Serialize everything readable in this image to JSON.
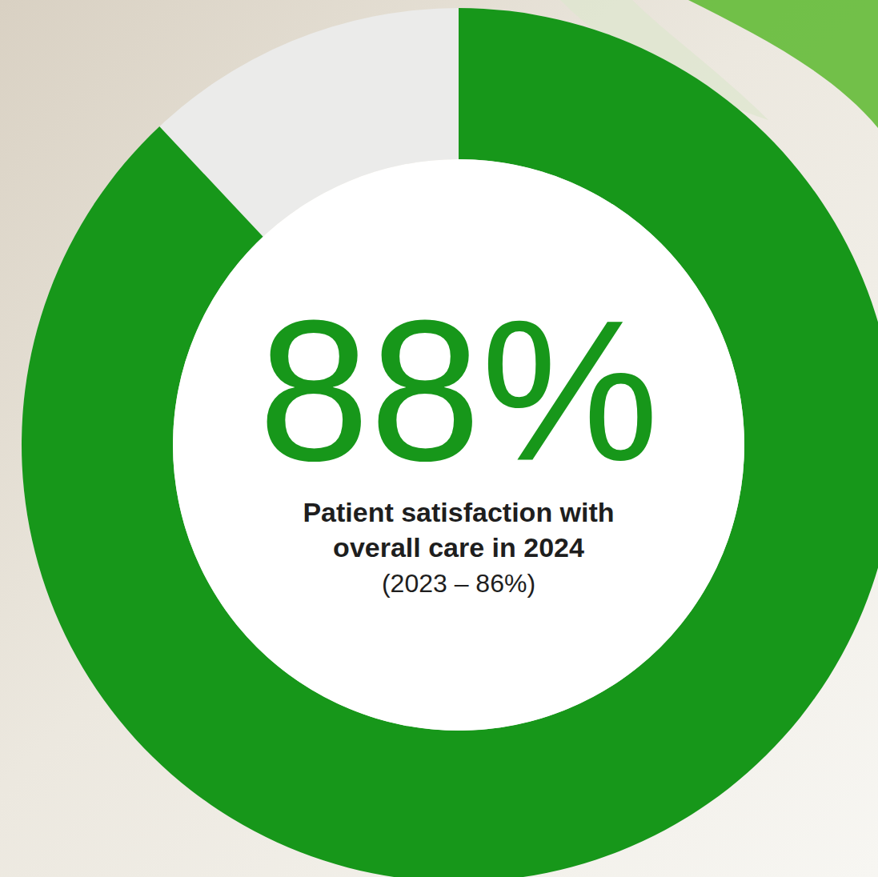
{
  "chart_data": {
    "type": "pie",
    "title": "Patient satisfaction with overall care in 2024",
    "subtitle": "(2023 – 86%)",
    "values": [
      88
    ],
    "value_labels": [
      "88%"
    ],
    "color": "#17971a",
    "ylim": [
      0,
      100
    ],
    "data_labels": true
  }
}
